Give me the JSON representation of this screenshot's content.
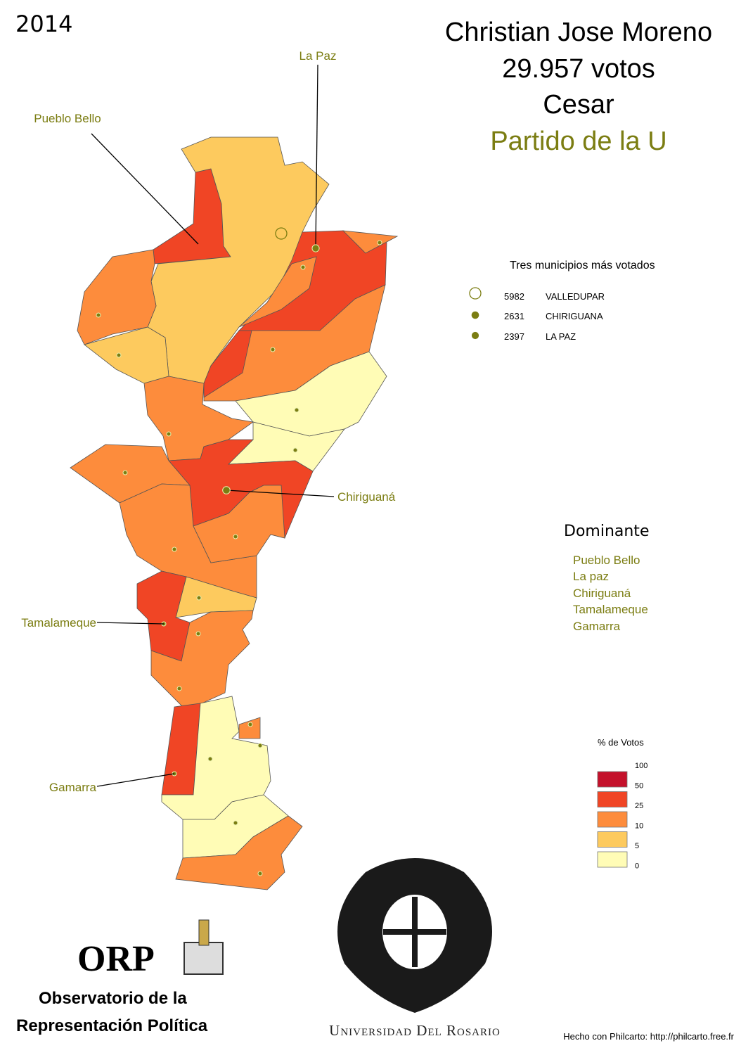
{
  "header": {
    "year": "2014",
    "title": [
      "Christian Jose Moreno",
      "29.957 votos",
      "Cesar"
    ],
    "party": "Partido de la U"
  },
  "callouts": [
    "La Paz",
    "Pueblo Bello",
    "Chiriguaná",
    "Tamalameque",
    "Gamarra"
  ],
  "top_three": {
    "title": "Tres municipios más votados",
    "items": [
      {
        "value": 5982,
        "name": "VALLEDUPAR"
      },
      {
        "value": 2631,
        "name": "CHIRIGUANA"
      },
      {
        "value": 2397,
        "name": "LA PAZ"
      }
    ]
  },
  "dominant": {
    "title": "Dominante",
    "items": [
      "Pueblo Bello",
      "La paz",
      "Chiriguaná",
      "Tamalameque",
      "Gamarra"
    ]
  },
  "pct_legend": {
    "title": "% de Votos",
    "breaks": [
      100,
      50,
      25,
      10,
      5,
      0
    ],
    "colors": [
      "#c4112b",
      "#f04525",
      "#fd8c3c",
      "#fdca5e",
      "#fffcb6"
    ]
  },
  "logos": {
    "orp": "ORP",
    "orp_name": [
      "Observatorio de la",
      "Representación Política"
    ],
    "university": "Universidad Del Rosario"
  },
  "credit": "Hecho con Philcarto: http://philcarto.free.fr"
}
